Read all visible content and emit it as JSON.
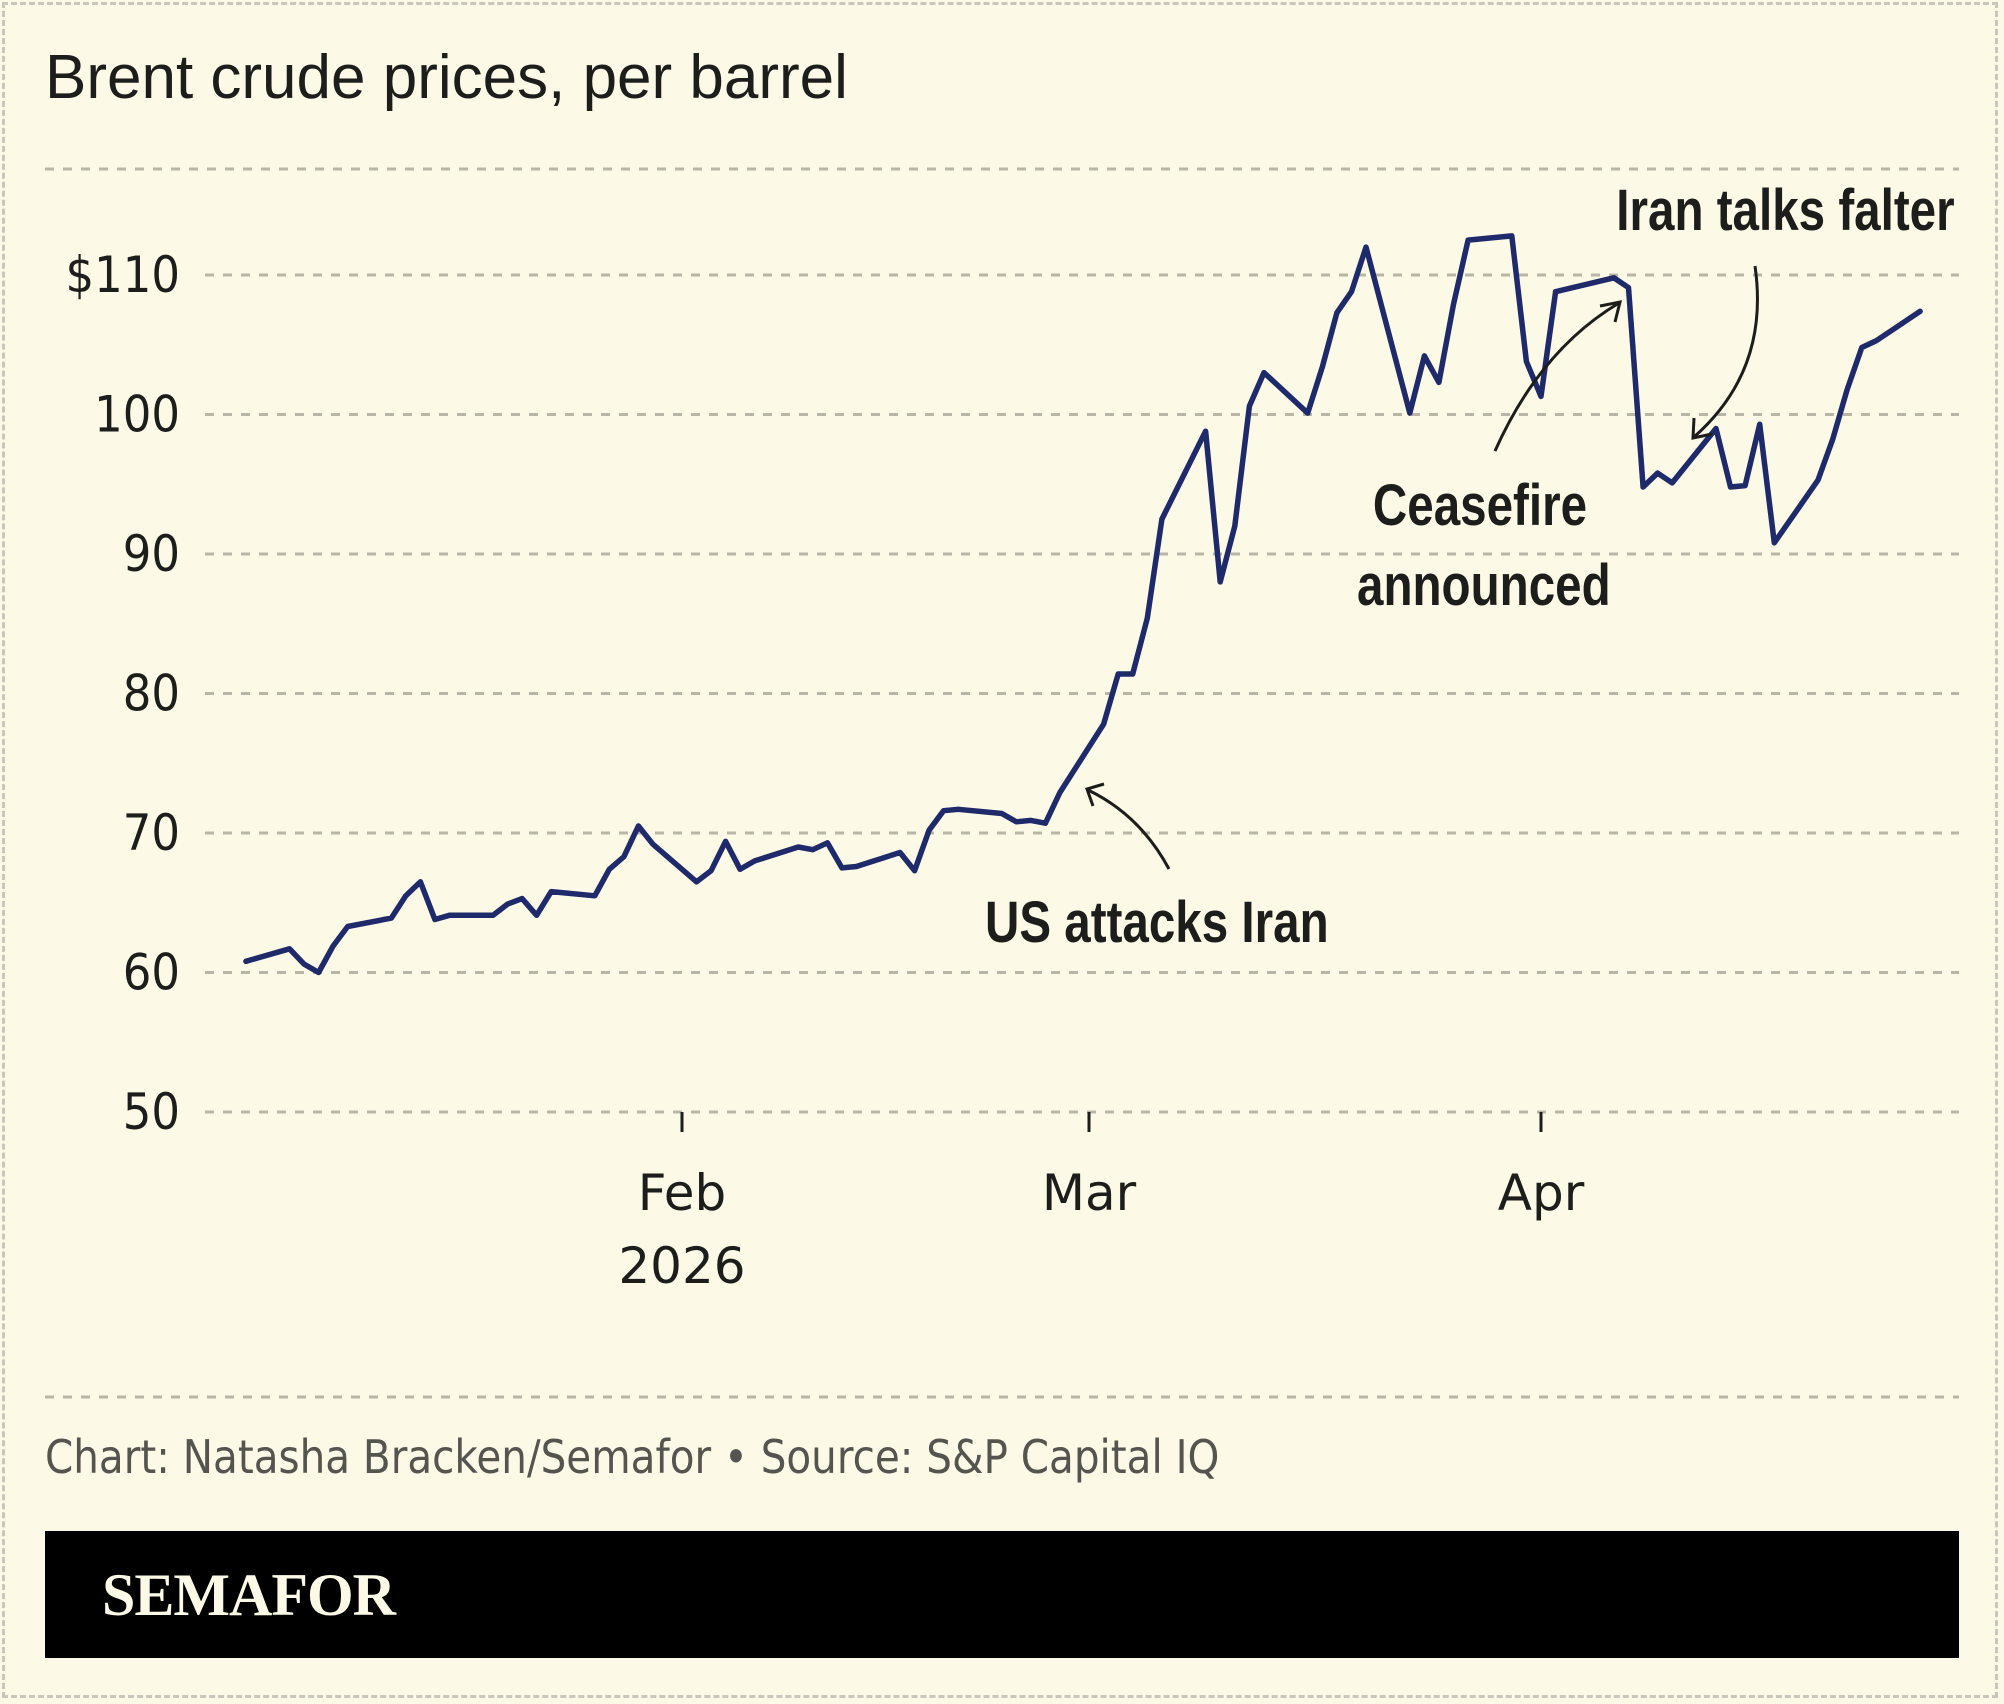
{
  "title": "Brent crude prices, per barrel",
  "footer": "Chart: Natasha Bracken/Semafor • Source: S&P Capital IQ",
  "brand": "SEMAFOR",
  "colors": {
    "background": "#fcf9e6",
    "line": "#1f2a6b",
    "grid": "#b9b6a8",
    "text": "#1d1d1b"
  },
  "chart_data": {
    "type": "line",
    "title": "Brent crude prices, per barrel",
    "xlabel": "",
    "ylabel": "",
    "ylim": [
      50,
      110
    ],
    "yticks": [
      "50",
      "60",
      "70",
      "80",
      "90",
      "100",
      "$110"
    ],
    "ytick_values": [
      50,
      60,
      70,
      80,
      90,
      100,
      110
    ],
    "xticks": [
      {
        "date": "2026-02-01",
        "label": "Feb",
        "sub": "2026"
      },
      {
        "date": "2026-03-01",
        "label": "Mar",
        "sub": ""
      },
      {
        "date": "2026-04-01",
        "label": "Apr",
        "sub": ""
      }
    ],
    "grid": true,
    "annotations": [
      {
        "text": "US attacks Iran",
        "lines": [
          "US attacks Iran"
        ],
        "date": "2026-02-28"
      },
      {
        "text": "Ceasefire announced",
        "lines": [
          "Ceasefire",
          "announced"
        ],
        "date": "2026-04-07"
      },
      {
        "text": "Iran talks falter",
        "lines": [
          "Iran talks falter"
        ],
        "date": "2026-04-13"
      }
    ],
    "series": [
      {
        "x": [
          "2026-01-02",
          "2026-01-05",
          "2026-01-06",
          "2026-01-07",
          "2026-01-08",
          "2026-01-09",
          "2026-01-12",
          "2026-01-13",
          "2026-01-14",
          "2026-01-15",
          "2026-01-16",
          "2026-01-19",
          "2026-01-20",
          "2026-01-21",
          "2026-01-22",
          "2026-01-23",
          "2026-01-26",
          "2026-01-27",
          "2026-01-28",
          "2026-01-29",
          "2026-01-30",
          "2026-02-02",
          "2026-02-03",
          "2026-02-04",
          "2026-02-05",
          "2026-02-06",
          "2026-02-09",
          "2026-02-10",
          "2026-02-11",
          "2026-02-12",
          "2026-02-13",
          "2026-02-16",
          "2026-02-17",
          "2026-02-18",
          "2026-02-19",
          "2026-02-20",
          "2026-02-23",
          "2026-02-24",
          "2026-02-25",
          "2026-02-26",
          "2026-02-27",
          "2026-03-02",
          "2026-03-03",
          "2026-03-04",
          "2026-03-05",
          "2026-03-06",
          "2026-03-09",
          "2026-03-10",
          "2026-03-11",
          "2026-03-12",
          "2026-03-13",
          "2026-03-16",
          "2026-03-17",
          "2026-03-18",
          "2026-03-19",
          "2026-03-20",
          "2026-03-23",
          "2026-03-24",
          "2026-03-25",
          "2026-03-26",
          "2026-03-27",
          "2026-03-30",
          "2026-03-31",
          "2026-04-01",
          "2026-04-02",
          "2026-04-06",
          "2026-04-07",
          "2026-04-08",
          "2026-04-09",
          "2026-04-10",
          "2026-04-13",
          "2026-04-14",
          "2026-04-15",
          "2026-04-16",
          "2026-04-17",
          "2026-04-20",
          "2026-04-21",
          "2026-04-22",
          "2026-04-23",
          "2026-04-24",
          "2026-04-27"
        ],
        "y": [
          60.8,
          61.7,
          60.6,
          60.0,
          61.9,
          63.3,
          63.9,
          65.5,
          66.5,
          63.8,
          64.1,
          64.1,
          64.9,
          65.3,
          64.1,
          65.8,
          65.5,
          67.4,
          68.3,
          70.5,
          69.2,
          66.5,
          67.3,
          69.4,
          67.4,
          68.0,
          69.0,
          68.8,
          69.3,
          67.5,
          67.6,
          68.6,
          67.3,
          70.2,
          71.6,
          71.7,
          71.4,
          70.8,
          70.9,
          70.7,
          72.9,
          77.8,
          81.4,
          81.4,
          85.4,
          92.5,
          98.8,
          88.0,
          92.0,
          100.6,
          103.0,
          100.1,
          103.4,
          107.3,
          108.8,
          112.0,
          100.1,
          104.2,
          102.3,
          107.9,
          112.5,
          112.8,
          103.8,
          101.3,
          108.8,
          109.8,
          109.1,
          94.8,
          95.8,
          95.1,
          99.0,
          94.8,
          94.9,
          99.3,
          90.8,
          95.3,
          98.2,
          101.8,
          104.8,
          105.3,
          107.4
        ]
      }
    ]
  }
}
